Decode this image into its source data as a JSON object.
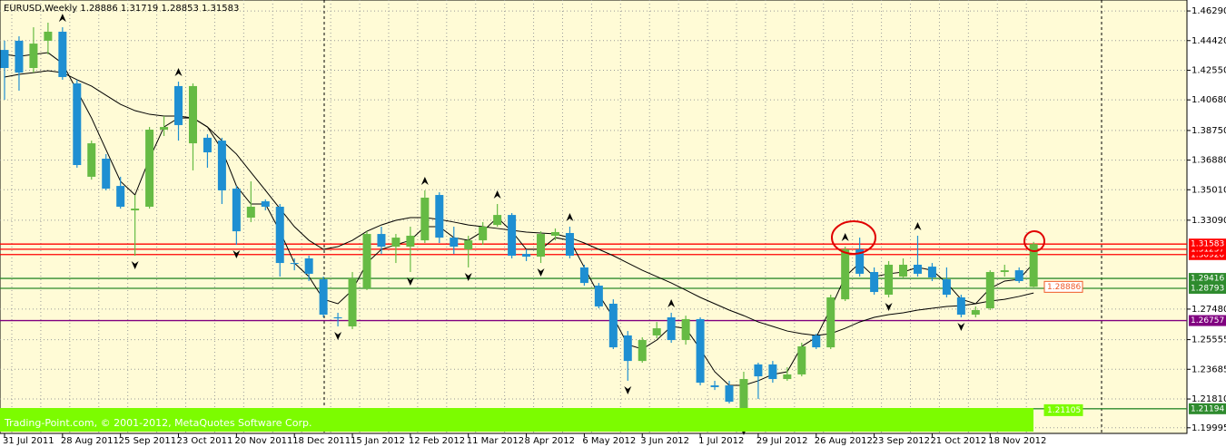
{
  "chart_data": {
    "type": "candlestick",
    "title": "EURUSD,Weekly  1.28886 1.31719 1.28853 1.31583",
    "footer": "Trading-Point.com, © 2001-2012, MetaQuotes Software Corp.",
    "categories": [
      "31 Jul 2011",
      null,
      null,
      null,
      "28 Aug 2011",
      null,
      null,
      null,
      "25 Sep 2011",
      null,
      null,
      null,
      "23 Oct 2011",
      null,
      null,
      null,
      "20 Nov 2011",
      null,
      null,
      null,
      "18 Dec 2011",
      null,
      null,
      null,
      "15 Jan 2012",
      null,
      null,
      null,
      "12 Feb 2012",
      null,
      null,
      null,
      "11 Mar 2012",
      null,
      null,
      null,
      "8 Apr 2012",
      null,
      null,
      null,
      "6 May 2012",
      null,
      null,
      null,
      "3 Jun 2012",
      null,
      null,
      null,
      "1 Jul 2012",
      null,
      null,
      null,
      "29 Jul 2012",
      null,
      null,
      null,
      "26 Aug 2012",
      null,
      null,
      null,
      "23 Sep 2012",
      null,
      null,
      null,
      "21 Oct 2012",
      null,
      null,
      null,
      "18 Nov 2012",
      null,
      null,
      null
    ],
    "open": [
      1.4383,
      1.4441,
      1.4269,
      1.4441,
      1.4498,
      1.4172,
      1.3583,
      1.3697,
      1.3525,
      1.3371,
      1.3394,
      1.388,
      1.4155,
      1.3794,
      1.3829,
      1.3811,
      1.3508,
      1.3325,
      1.3428,
      1.3394,
      1.3039,
      1.3068,
      1.2936,
      1.2696,
      1.2639,
      1.2879,
      1.3222,
      1.3142,
      1.3142,
      1.3182,
      1.3468,
      1.3199,
      1.3125,
      1.3182,
      1.3279,
      1.3342,
      1.3096,
      1.3079,
      1.3211,
      1.3228,
      1.3011,
      1.2896,
      1.2782,
      1.2582,
      1.2421,
      1.2582,
      1.2696,
      1.2553,
      1.2685,
      1.2267,
      1.2267,
      1.2124,
      1.2399,
      1.2399,
      1.2307,
      1.2336,
      1.2582,
      1.2507,
      1.281,
      1.3125,
      1.2982,
      1.2839,
      1.2953,
      1.3028,
      1.3016,
      1.2936,
      1.2822,
      1.2713,
      1.2753,
      1.2982,
      1.2993,
      1.28886
    ],
    "high": [
      1.4441,
      1.4469,
      1.4526,
      1.4555,
      1.4526,
      1.4195,
      1.3811,
      1.3726,
      1.3583,
      1.3468,
      1.3897,
      1.3966,
      1.4183,
      1.4172,
      1.3851,
      1.3829,
      1.3525,
      1.3554,
      1.344,
      1.3411,
      1.3068,
      1.3085,
      1.2953,
      1.2725,
      1.2982,
      1.3239,
      1.3268,
      1.3222,
      1.3268,
      1.3497,
      1.3485,
      1.3268,
      1.3211,
      1.3297,
      1.3411,
      1.3354,
      1.3125,
      1.3239,
      1.3257,
      1.3268,
      1.3028,
      1.2913,
      1.281,
      1.261,
      1.257,
      1.2667,
      1.2725,
      1.2707,
      1.2696,
      1.2296,
      1.2296,
      1.2353,
      1.241,
      1.2421,
      1.2381,
      1.2536,
      1.2593,
      1.2839,
      1.3142,
      1.3199,
      1.3011,
      1.3051,
      1.3068,
      1.3211,
      1.3039,
      1.3011,
      1.2839,
      1.2765,
      1.2993,
      1.3028,
      1.3011,
      1.31719
    ],
    "low": [
      1.4069,
      1.4126,
      1.424,
      1.4355,
      1.4195,
      1.364,
      1.3565,
      1.3497,
      1.3382,
      1.3085,
      1.3382,
      1.384,
      1.3811,
      1.3623,
      1.364,
      1.3411,
      1.3154,
      1.3297,
      1.3371,
      1.2953,
      1.2993,
      1.2925,
      1.2696,
      1.2639,
      1.2622,
      1.2868,
      1.3096,
      1.3039,
      1.2982,
      1.3165,
      1.3165,
      1.3096,
      1.3011,
      1.3154,
      1.3268,
      1.3068,
      1.3051,
      1.3039,
      1.3182,
      1.3068,
      1.2896,
      1.2753,
      1.2496,
      1.2296,
      1.241,
      1.2564,
      1.2536,
      1.2524,
      1.2267,
      1.2238,
      1.2153,
      1.2038,
      1.2181,
      1.2284,
      1.2296,
      1.2324,
      1.2496,
      1.2496,
      1.2799,
      1.2953,
      1.2839,
      1.2822,
      1.2942,
      1.2953,
      1.2925,
      1.2822,
      1.2696,
      1.2696,
      1.2742,
      1.2953,
      1.2913,
      1.28853
    ],
    "close": [
      1.4269,
      1.424,
      1.4423,
      1.4498,
      1.4212,
      1.3657,
      1.3794,
      1.3508,
      1.3394,
      1.3382,
      1.388,
      1.3897,
      1.3909,
      1.4155,
      1.3737,
      1.3497,
      1.3239,
      1.3394,
      1.3394,
      1.3039,
      1.3033,
      1.2971,
      1.2713,
      1.269,
      1.2942,
      1.3222,
      1.3142,
      1.3199,
      1.3211,
      1.3451,
      1.3199,
      1.3142,
      1.3182,
      1.3268,
      1.3342,
      1.3085,
      1.3079,
      1.3222,
      1.3234,
      1.3085,
      1.2913,
      1.2765,
      1.2507,
      1.2421,
      1.2553,
      1.2627,
      1.2553,
      1.2685,
      1.2284,
      1.2256,
      1.2164,
      1.2307,
      1.2324,
      1.2307,
      1.2336,
      1.2513,
      1.2507,
      1.2822,
      1.3125,
      1.2971,
      1.2856,
      1.3028,
      1.3028,
      1.2971,
      1.2948,
      1.2839,
      1.2713,
      1.2742,
      1.2982,
      1.2993,
      1.2925,
      1.31583
    ],
    "up_color": "#66bb44",
    "down_color": "#1e8fd2",
    "moving_averages": [
      {
        "color": "#000000",
        "values": [
          1.4212,
          1.4229,
          1.424,
          1.4252,
          1.424,
          1.4195,
          1.4155,
          1.4097,
          1.404,
          1.4,
          1.3977,
          1.3966,
          1.3966,
          1.3954,
          1.3897,
          1.3811,
          1.3726,
          1.3611,
          1.3497,
          1.3382,
          1.3268,
          1.3182,
          1.3125,
          1.3142,
          1.3182,
          1.3239,
          1.3279,
          1.3308,
          1.3325,
          1.3325,
          1.3314,
          1.3297,
          1.3279,
          1.3268,
          1.3257,
          1.3245,
          1.3234,
          1.3228,
          1.3222,
          1.3199,
          1.3165,
          1.3125,
          1.3085,
          1.3039,
          1.2993,
          1.2953,
          1.2913,
          1.2868,
          1.2822,
          1.2782,
          1.2742,
          1.2707,
          1.2667,
          1.2639,
          1.261,
          1.2593,
          1.2582,
          1.2593,
          1.2627,
          1.2667,
          1.2696,
          1.2713,
          1.2725,
          1.2742,
          1.2753,
          1.2765,
          1.277,
          1.2782,
          1.2799,
          1.281,
          1.2828,
          1.285
        ]
      },
      {
        "color": "#000000",
        "values": [
          1.4355,
          1.4343,
          1.4355,
          1.4366,
          1.4298,
          1.4126,
          1.3954,
          1.3754,
          1.3554,
          1.3468,
          1.3697,
          1.3897,
          1.3954,
          1.3954,
          1.3897,
          1.3754,
          1.3525,
          1.3411,
          1.3411,
          1.3239,
          1.3039,
          1.2953,
          1.281,
          1.2782,
          1.2868,
          1.3039,
          1.3125,
          1.3154,
          1.3182,
          1.3268,
          1.3268,
          1.3199,
          1.3182,
          1.3239,
          1.3325,
          1.3239,
          1.3125,
          1.3125,
          1.3199,
          1.3182,
          1.3011,
          1.2839,
          1.2696,
          1.2524,
          1.2496,
          1.2553,
          1.2639,
          1.2627,
          1.2496,
          1.2353,
          1.2267,
          1.2267,
          1.2296,
          1.2336,
          1.2353,
          1.2513,
          1.257,
          1.2753,
          1.2953,
          1.3039,
          1.2953,
          1.2971,
          1.2982,
          1.3011,
          1.2993,
          1.2913,
          1.281,
          1.2782,
          1.2879,
          1.2925,
          1.2936,
          1.3039
        ]
      }
    ],
    "fractals_up": [
      4,
      12,
      29,
      34,
      39,
      46,
      58,
      63
    ],
    "fractals_down": [
      9,
      16,
      23,
      28,
      32,
      37,
      43,
      51,
      61,
      66
    ],
    "levels": [
      {
        "value": 1.3092,
        "label": "1.30920",
        "color": "#ff0000"
      },
      {
        "value": 1.31257,
        "label": "1.31257",
        "color": "#ff0000"
      },
      {
        "value": 1.31583,
        "label": "1.31583",
        "color": "#ff0000"
      },
      {
        "value": 1.29416,
        "label": "1.29416",
        "color": "#2e8b2e"
      },
      {
        "value": 1.28793,
        "label": "1.28793",
        "color": "#2e8b2e"
      },
      {
        "value": 1.26757,
        "label": "1.26757",
        "color": "#800080"
      },
      {
        "value": 1.21194,
        "label": "1.21194",
        "color": "#2e8b2e"
      }
    ],
    "price_labels": [
      {
        "value": 1.28886,
        "color": "#f05a28"
      },
      {
        "value": 1.21105,
        "color": "#7cfc00"
      }
    ],
    "ylim": [
      1.1964,
      1.4698
    ],
    "yticks": [
      {
        "value": 1.4629,
        "label": "1.46290"
      },
      {
        "value": 1.4442,
        "label": "1.44420"
      },
      {
        "value": 1.4255,
        "label": "1.42550"
      },
      {
        "value": 1.4068,
        "label": "1.40680"
      },
      {
        "value": 1.3875,
        "label": "1.38750"
      },
      {
        "value": 1.3688,
        "label": "1.36880"
      },
      {
        "value": 1.3501,
        "label": "1.35010"
      },
      {
        "value": 1.3309,
        "label": "1.33090"
      },
      {
        "value": 1.2748,
        "label": "1.27480"
      },
      1.25555,
      1.23685,
      {
        "value": 1.2181,
        "label": "1.21810"
      },
      1.19995
    ],
    "grid": true
  }
}
